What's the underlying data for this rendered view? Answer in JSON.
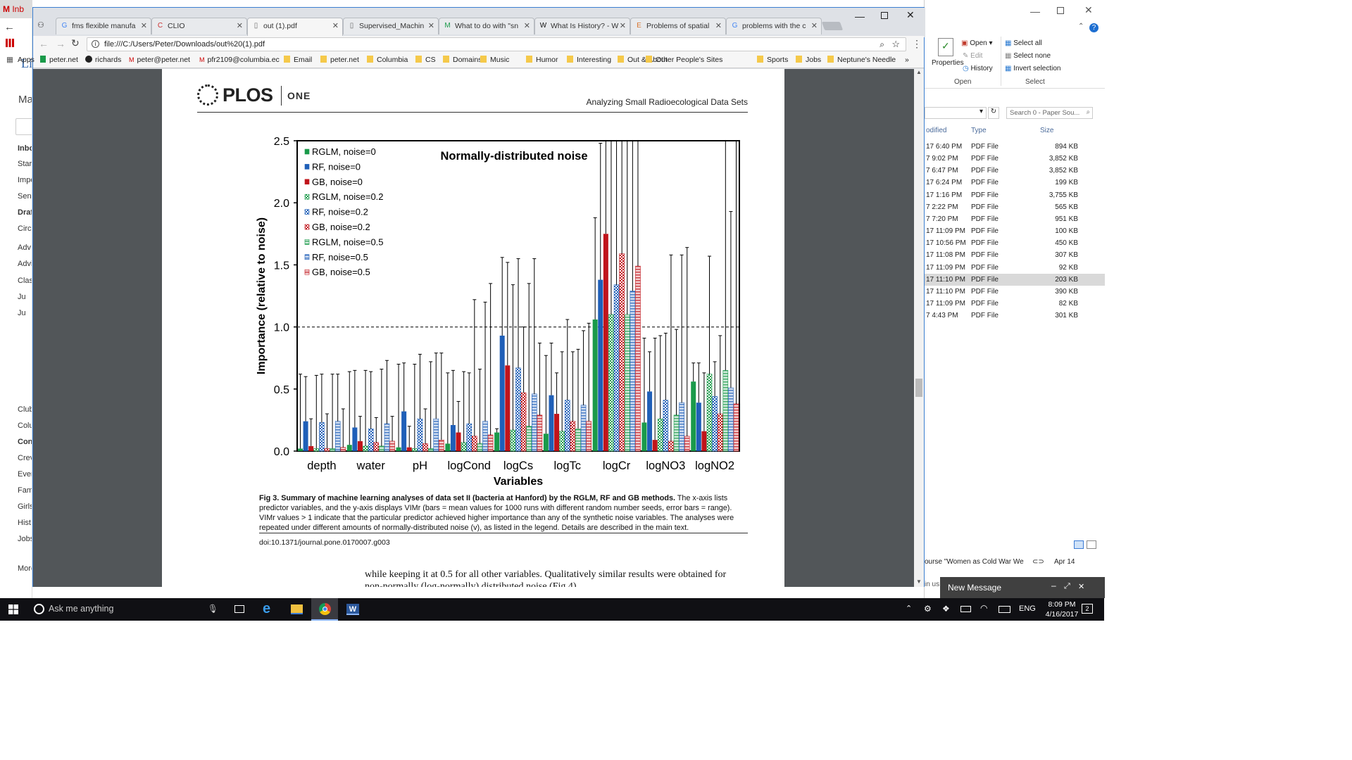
{
  "gmail": {
    "tab_label": "Inb",
    "header_label": "Li",
    "mail_label": "Ma",
    "items": [
      "Inbo",
      "Star",
      "Impo",
      "Sen",
      "Draf",
      "Circ",
      "Adv",
      "Advi",
      "Clas",
      "Ju",
      "Ju",
      "Club",
      "Colu",
      "Con",
      "Crev",
      "Ever",
      "Fam",
      "Girls",
      "Hist",
      "Jobs",
      "More"
    ]
  },
  "chrome": {
    "tabs": [
      {
        "label": "fms flexible manufa",
        "icon": "google-icon"
      },
      {
        "label": "CLIO",
        "icon": "clio-icon"
      },
      {
        "label": "out (1).pdf",
        "icon": "page-icon"
      },
      {
        "label": "Supervised_Machin",
        "icon": "page-icon"
      },
      {
        "label": "What to do with \"sn",
        "icon": "m-icon"
      },
      {
        "label": "What Is History? - W",
        "icon": "wiki-icon"
      },
      {
        "label": "Problems of spatial",
        "icon": "e-icon"
      },
      {
        "label": "problems with the c",
        "icon": "google-icon"
      }
    ],
    "address": "file:///C:/Users/Peter/Downloads/out%20(1).pdf",
    "apps_label": "Apps",
    "bookmarks": [
      "peter.net",
      "richards",
      "peter@peter.net",
      "pfr2109@columbia.ec",
      "Email",
      "peter.net",
      "Columbia",
      "CS",
      "Domains",
      "Music",
      "Humor",
      "Interesting",
      "Out & About",
      "Other People's Sites",
      "Sports",
      "Jobs",
      "Neptune's Needle"
    ]
  },
  "pdf": {
    "journal": "PLOS",
    "journal_sub": "ONE",
    "running_title": "Analyzing Small Radioecological Data Sets",
    "caption_bold": "Fig 3. Summary of machine learning analyses of data set II (bacteria at Hanford) by the RGLM, RF and GB methods.",
    "caption_rest": " The x-axis lists predictor variables, and the y-axis displays VIMr (bars = mean values for 1000 runs with different random number seeds, error bars = range). VIMr values > 1 indicate that the particular predictor achieved higher importance than any of the synthetic noise variables. The analyses were repeated under different amounts of normally-distributed noise (v), as listed in the legend. Details are described in the main text.",
    "doi": "doi:10.1371/journal.pone.0170007.g003",
    "body_line1": "while keeping it at 0.5 for all other variables. Qualitatively similar results were obtained for",
    "body_line2": "non-normally (log-normally) distributed noise (Fig 4)."
  },
  "colors": {
    "rglm": "#1a9a4a",
    "rf": "#1f5fb8",
    "gb": "#c0141b",
    "rglm_light": "#3fbf6a",
    "rf_light": "#4a8ad6",
    "gb_light": "#e03a3a"
  },
  "chart_data": {
    "type": "bar",
    "title": "Normally-distributed noise",
    "xlabel": "Variables",
    "ylabel": "Importance (relative to noise)",
    "ylim": [
      0,
      2.5
    ],
    "yticks": [
      "0.0",
      "0.5",
      "1.0",
      "1.5",
      "2.0",
      "2.5"
    ],
    "reference_line": 1.0,
    "legend_position": "top-left",
    "categories": [
      "depth",
      "water",
      "pH",
      "logCond",
      "logCs",
      "logTc",
      "logCr",
      "logNO3",
      "logNO2"
    ],
    "series": [
      {
        "name": "RGLM, noise=0",
        "pattern": "solid",
        "color": "#1a9a4a",
        "values": [
          0.02,
          0.05,
          0.03,
          0.06,
          0.15,
          0.14,
          1.06,
          0.23,
          0.56
        ],
        "err_high": [
          0.62,
          0.64,
          0.7,
          0.63,
          0.18,
          0.77,
          1.88,
          0.91,
          0.71
        ]
      },
      {
        "name": "RF, noise=0",
        "pattern": "solid",
        "color": "#1f5fb8",
        "values": [
          0.24,
          0.19,
          0.32,
          0.21,
          0.93,
          0.45,
          1.38,
          0.48,
          0.39
        ],
        "err_high": [
          0.6,
          0.65,
          0.71,
          0.65,
          1.56,
          0.87,
          2.48,
          0.8,
          0.71
        ]
      },
      {
        "name": "GB, noise=0",
        "pattern": "solid",
        "color": "#c0141b",
        "values": [
          0.04,
          0.08,
          0.03,
          0.15,
          0.69,
          0.3,
          1.75,
          0.09,
          0.16
        ],
        "err_high": [
          0.26,
          0.28,
          0.2,
          0.4,
          1.52,
          0.63,
          2.5,
          0.91,
          0.63
        ]
      },
      {
        "name": "RGLM, noise=0.2",
        "pattern": "checker",
        "color": "#1a9a4a",
        "values": [
          0.02,
          0.04,
          0.02,
          0.07,
          0.17,
          0.16,
          1.1,
          0.26,
          0.62
        ],
        "err_high": [
          0.61,
          0.65,
          0.7,
          0.64,
          1.34,
          0.8,
          2.5,
          0.93,
          1.57
        ]
      },
      {
        "name": "RF, noise=0.2",
        "pattern": "checker",
        "color": "#1f5fb8",
        "values": [
          0.23,
          0.18,
          0.26,
          0.22,
          0.67,
          0.41,
          1.34,
          0.41,
          0.44
        ],
        "err_high": [
          0.62,
          0.64,
          0.78,
          0.63,
          1.55,
          1.06,
          2.5,
          0.95,
          0.72
        ]
      },
      {
        "name": "GB, noise=0.2",
        "pattern": "checker",
        "color": "#c0141b",
        "values": [
          0.02,
          0.07,
          0.06,
          0.12,
          0.47,
          0.24,
          1.59,
          0.08,
          0.3
        ],
        "err_high": [
          0.3,
          0.27,
          0.34,
          1.22,
          1.0,
          0.8,
          2.5,
          1.58,
          0.93
        ]
      },
      {
        "name": "RGLM, noise=0.5",
        "pattern": "hatch",
        "color": "#1a9a4a",
        "values": [
          0.02,
          0.04,
          0.02,
          0.06,
          0.2,
          0.18,
          1.1,
          0.29,
          0.65
        ],
        "err_high": [
          0.62,
          0.66,
          0.72,
          0.66,
          1.35,
          0.82,
          2.5,
          0.98,
          2.5
        ]
      },
      {
        "name": "RF, noise=0.5",
        "pattern": "hatch",
        "color": "#1f5fb8",
        "values": [
          0.24,
          0.22,
          0.26,
          0.24,
          0.46,
          0.37,
          1.29,
          0.39,
          0.51
        ],
        "err_high": [
          0.62,
          0.73,
          0.79,
          1.2,
          1.55,
          0.97,
          2.5,
          1.58,
          1.93
        ]
      },
      {
        "name": "GB, noise=0.5",
        "pattern": "hatch",
        "color": "#c0141b",
        "values": [
          0.03,
          0.08,
          0.09,
          0.13,
          0.29,
          0.24,
          1.49,
          0.12,
          0.38
        ],
        "err_high": [
          0.34,
          0.28,
          0.79,
          1.35,
          0.87,
          1.03,
          2.5,
          1.64,
          2.5
        ]
      }
    ]
  },
  "explorer": {
    "ribbon": {
      "open": "Open",
      "edit": "Edit",
      "history": "History",
      "properties": "Properties",
      "select_all": "Select all",
      "select_none": "Select none",
      "invert": "Invert selection",
      "group_open": "Open",
      "group_select": "Select"
    },
    "search_placeholder": "Search 0 - Paper Sou...",
    "columns": [
      "odified",
      "Type",
      "Size"
    ],
    "rows": [
      [
        "17 6:40 PM",
        "PDF File",
        "894 KB"
      ],
      [
        "7 9:02 PM",
        "PDF File",
        "3,852 KB"
      ],
      [
        "7 6:47 PM",
        "PDF File",
        "3,852 KB"
      ],
      [
        "17 6:24 PM",
        "PDF File",
        "199 KB"
      ],
      [
        "17 1:16 PM",
        "PDF File",
        "3,755 KB"
      ],
      [
        "7 2:22 PM",
        "PDF File",
        "565 KB"
      ],
      [
        "7 7:20 PM",
        "PDF File",
        "951 KB"
      ],
      [
        "17 11:09 PM",
        "PDF File",
        "100 KB"
      ],
      [
        "17 10:56 PM",
        "PDF File",
        "450 KB"
      ],
      [
        "17 11:08 PM",
        "PDF File",
        "307 KB"
      ],
      [
        "17 11:09 PM",
        "PDF File",
        "92 KB"
      ],
      [
        "17 11:10 PM",
        "PDF File",
        "203 KB"
      ],
      [
        "17 11:10 PM",
        "PDF File",
        "390 KB"
      ],
      [
        "17 11:09 PM",
        "PDF File",
        "82 KB"
      ],
      [
        "7 4:43 PM",
        "PDF File",
        "301 KB"
      ]
    ],
    "mail_row_text": "ourse \"Women as Cold War We",
    "mail_row_date": "Apr 14",
    "new_message": "New Message",
    "in_us": "in us"
  },
  "taskbar": {
    "search_placeholder": "Ask me anything",
    "lang": "ENG",
    "time": "8:09 PM",
    "date": "4/16/2017",
    "notification_count": "2"
  }
}
